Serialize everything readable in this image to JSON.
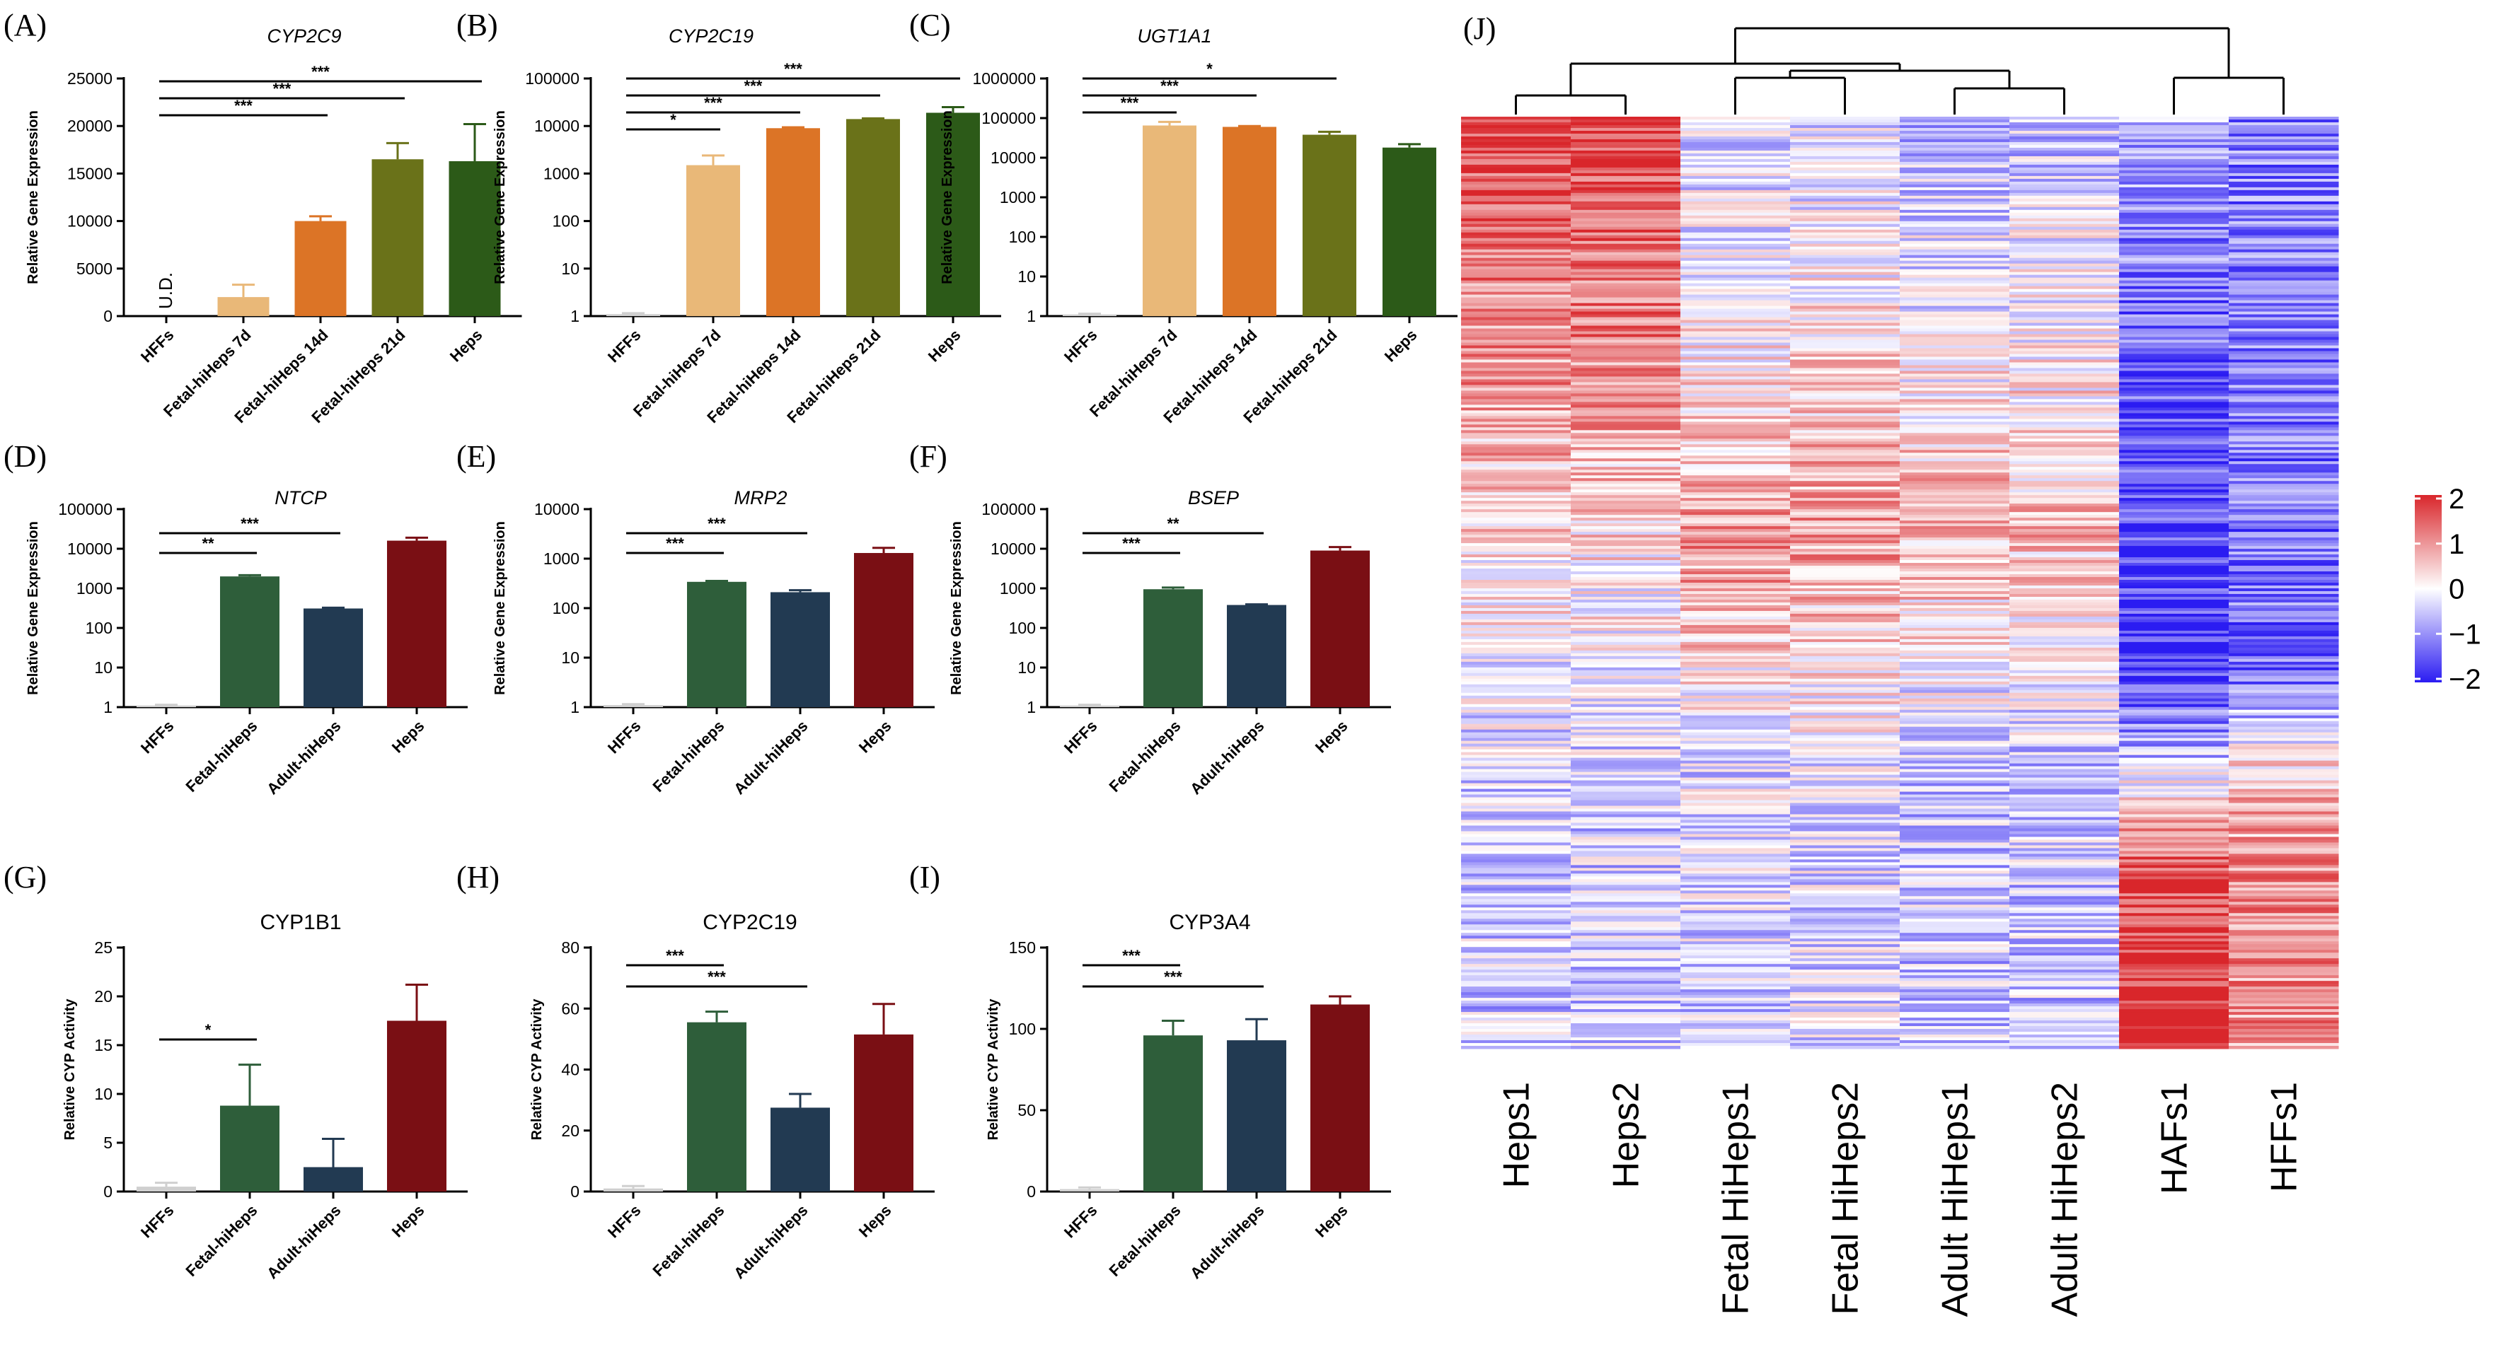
{
  "figure": {
    "colorbar": {
      "ticks": [
        "2",
        "1",
        "0",
        "−1",
        "−2"
      ],
      "low_color": "#2b1cf2",
      "mid_color": "#ffffff",
      "high_color": "#d9262b"
    }
  },
  "chart_data": [
    {
      "id": "A",
      "label": "(A)",
      "title": "CYP2C9",
      "type": "bar",
      "scale": "linear",
      "ylabel": "Relative Gene Expression",
      "ylim": [
        0,
        25000
      ],
      "ticks": [
        "0",
        "5000",
        "10000",
        "15000",
        "20000",
        "25000"
      ],
      "categories": [
        "HFFs",
        "Fetal-hiHeps 7d",
        "Fetal-hiHeps 14d",
        "Fetal-hiHeps 21d",
        "Heps"
      ],
      "values": [
        0,
        2000,
        10000,
        16500,
        16300
      ],
      "errors": [
        0,
        1300,
        500,
        1700,
        3900
      ],
      "colors": [
        "#cfcfcf",
        "#e9b878",
        "#dc7426",
        "#6a7219",
        "#2c5a18"
      ],
      "annotations": [
        "U.D."
      ],
      "sig": [
        {
          "from": 0,
          "to": 2,
          "text": "***"
        },
        {
          "from": 0,
          "to": 3,
          "text": "***"
        },
        {
          "from": 0,
          "to": 4,
          "text": "***"
        }
      ]
    },
    {
      "id": "B",
      "label": "(B)",
      "title": "CYP2C19",
      "type": "bar",
      "scale": "log",
      "ylabel": "Relative Gene Expression",
      "ylim": [
        1,
        100000
      ],
      "ticks": [
        "1",
        "10",
        "100",
        "1000",
        "10000",
        "100000"
      ],
      "categories": [
        "HFFs",
        "Fetal-hiHeps 7d",
        "Fetal-hiHeps 14d",
        "Fetal-hiHeps 21d",
        "Heps"
      ],
      "values": [
        1.1,
        1500,
        9000,
        14000,
        19000
      ],
      "errors": [
        0.05,
        900,
        400,
        500,
        6000
      ],
      "colors": [
        "#cfcfcf",
        "#e9b878",
        "#dc7426",
        "#6a7219",
        "#2c5a18"
      ],
      "sig": [
        {
          "from": 0,
          "to": 1,
          "text": "*"
        },
        {
          "from": 0,
          "to": 2,
          "text": "***"
        },
        {
          "from": 0,
          "to": 3,
          "text": "***"
        },
        {
          "from": 0,
          "to": 4,
          "text": "***"
        }
      ]
    },
    {
      "id": "C",
      "label": "(C)",
      "title": "UGT1A1",
      "type": "bar",
      "scale": "log",
      "ylabel": "Relative Gene Expression",
      "ylim": [
        1,
        1000000
      ],
      "ticks": [
        "1",
        "10",
        "100",
        "1000",
        "10000",
        "100000",
        "1000000"
      ],
      "categories": [
        "HFFs",
        "Fetal-hiHeps 7d",
        "Fetal-hiHeps 14d",
        "Fetal-hiHeps 21d",
        "Heps"
      ],
      "values": [
        1.1,
        65000,
        60000,
        38000,
        18000
      ],
      "errors": [
        0.05,
        15000,
        3000,
        7000,
        4000
      ],
      "colors": [
        "#cfcfcf",
        "#e9b878",
        "#dc7426",
        "#6a7219",
        "#2c5a18"
      ],
      "sig": [
        {
          "from": 0,
          "to": 1,
          "text": "***"
        },
        {
          "from": 0,
          "to": 2,
          "text": "***"
        },
        {
          "from": 0,
          "to": 3,
          "text": "*"
        }
      ]
    },
    {
      "id": "D",
      "label": "(D)",
      "title": "NTCP",
      "type": "bar",
      "scale": "log",
      "ylabel": "Relative Gene Expression",
      "ylim": [
        1,
        100000
      ],
      "ticks": [
        "1",
        "10",
        "100",
        "1000",
        "10000",
        "100000"
      ],
      "categories": [
        "HFFs",
        "Fetal-hiHeps",
        "Adult-hiHeps",
        "Heps"
      ],
      "values": [
        1.1,
        2000,
        310,
        16000
      ],
      "errors": [
        0.05,
        150,
        15,
        3000
      ],
      "colors": [
        "#cfcfcf",
        "#2e5e3a",
        "#223a52",
        "#7a0f14"
      ],
      "sig": [
        {
          "from": 0,
          "to": 1,
          "text": "**"
        },
        {
          "from": 0,
          "to": 2,
          "text": "***"
        }
      ]
    },
    {
      "id": "E",
      "label": "(E)",
      "title": "MRP2",
      "type": "bar",
      "scale": "log",
      "ylabel": "Relative Gene Expression",
      "ylim": [
        1,
        10000
      ],
      "ticks": [
        "1",
        "10",
        "100",
        "1000",
        "10000"
      ],
      "categories": [
        "HFFs",
        "Fetal-hiHeps",
        "Adult-hiHeps",
        "Heps"
      ],
      "values": [
        1.1,
        340,
        210,
        1300
      ],
      "errors": [
        0.05,
        15,
        20,
        350
      ],
      "colors": [
        "#cfcfcf",
        "#2e5e3a",
        "#223a52",
        "#7a0f14"
      ],
      "sig": [
        {
          "from": 0,
          "to": 1,
          "text": "***"
        },
        {
          "from": 0,
          "to": 2,
          "text": "***"
        }
      ]
    },
    {
      "id": "F",
      "label": "(F)",
      "title": "BSEP",
      "type": "bar",
      "scale": "log",
      "ylabel": "Relative Gene Expression",
      "ylim": [
        1,
        100000
      ],
      "ticks": [
        "1",
        "10",
        "100",
        "1000",
        "10000",
        "100000"
      ],
      "categories": [
        "HFFs",
        "Fetal-hiHeps",
        "Adult-hiHeps",
        "Heps"
      ],
      "values": [
        1.1,
        950,
        380,
        9000
      ],
      "errors": [
        0.05,
        100,
        15,
        2000
      ],
      "colors": [
        "#cfcfcf",
        "#2e5e3a",
        "#223a52",
        "#7a0f14"
      ],
      "sig": [
        {
          "from": 0,
          "to": 1,
          "text": "***"
        },
        {
          "from": 0,
          "to": 2,
          "text": "**"
        }
      ]
    },
    {
      "id": "G",
      "label": "(G)",
      "title": "CYP1B1",
      "type": "bar",
      "scale": "linear",
      "ylabel": "Relative CYP Activity",
      "ylim": [
        0,
        25
      ],
      "ticks": [
        "0",
        "5",
        "10",
        "15",
        "20",
        "25"
      ],
      "categories": [
        "HFFs",
        "Fetal-hiHeps",
        "Adult-hiHeps",
        "Heps"
      ],
      "values": [
        0.5,
        8.8,
        2.5,
        17.5
      ],
      "errors": [
        0.4,
        4.2,
        2.9,
        3.7
      ],
      "colors": [
        "#cfcfcf",
        "#2e5e3a",
        "#223a52",
        "#7a0f14"
      ],
      "sig": [
        {
          "from": 0,
          "to": 1,
          "text": "*"
        }
      ]
    },
    {
      "id": "H",
      "label": "(H)",
      "title": "CYP2C19",
      "type": "bar",
      "scale": "linear",
      "ylabel": "Relative CYP Activity",
      "ylim": [
        0,
        80
      ],
      "ticks": [
        "0",
        "20",
        "40",
        "60",
        "80"
      ],
      "categories": [
        "HFFs",
        "Fetal-hiHeps",
        "Adult-hiHeps",
        "Heps"
      ],
      "values": [
        1,
        55.5,
        27.5,
        51.5
      ],
      "errors": [
        0.8,
        3.5,
        4.5,
        10
      ],
      "colors": [
        "#cfcfcf",
        "#2e5e3a",
        "#223a52",
        "#7a0f14"
      ],
      "sig": [
        {
          "from": 0,
          "to": 1,
          "text": "***"
        },
        {
          "from": 0,
          "to": 2,
          "text": "***"
        }
      ]
    },
    {
      "id": "I",
      "label": "(I)",
      "title": "CYP3A4",
      "type": "bar",
      "scale": "linear",
      "ylabel": "Relative CYP Activity",
      "ylim": [
        0,
        150
      ],
      "ticks": [
        "0",
        "50",
        "100",
        "150"
      ],
      "categories": [
        "HFFs",
        "Fetal-hiHeps",
        "Adult-hiHeps",
        "Heps"
      ],
      "values": [
        1.5,
        96,
        93,
        115
      ],
      "errors": [
        1,
        9,
        13,
        5
      ],
      "colors": [
        "#cfcfcf",
        "#2e5e3a",
        "#223a52",
        "#7a0f14"
      ],
      "sig": [
        {
          "from": 0,
          "to": 1,
          "text": "***"
        },
        {
          "from": 0,
          "to": 2,
          "text": "***"
        }
      ]
    },
    {
      "id": "J",
      "label": "(J)",
      "type": "heatmap",
      "columns": [
        "Heps1",
        "Heps2",
        "Fetal HiHeps1",
        "Fetal HiHeps2",
        "Adult HiHeps1",
        "Adult HiHeps2",
        "HAFs1",
        "HFFs1"
      ],
      "color_range": [
        -2,
        2
      ],
      "column_profiles": [
        [
          [
            0,
            1.6
          ],
          [
            0.25,
            1.0
          ],
          [
            0.45,
            0.3
          ],
          [
            0.7,
            -0.4
          ],
          [
            1,
            -0.5
          ]
        ],
        [
          [
            0,
            1.8
          ],
          [
            0.25,
            1.1
          ],
          [
            0.45,
            0.3
          ],
          [
            0.7,
            -0.4
          ],
          [
            1,
            -0.5
          ]
        ],
        [
          [
            0,
            -0.4
          ],
          [
            0.25,
            0.2
          ],
          [
            0.45,
            1.0
          ],
          [
            0.7,
            -0.3
          ],
          [
            1,
            -0.4
          ]
        ],
        [
          [
            0,
            -0.3
          ],
          [
            0.25,
            0.3
          ],
          [
            0.45,
            0.9
          ],
          [
            0.7,
            -0.2
          ],
          [
            1,
            -0.4
          ]
        ],
        [
          [
            0,
            -0.7
          ],
          [
            0.25,
            0.0
          ],
          [
            0.45,
            0.7
          ],
          [
            0.7,
            -0.5
          ],
          [
            1,
            -0.5
          ]
        ],
        [
          [
            0,
            -0.5
          ],
          [
            0.25,
            0.1
          ],
          [
            0.45,
            0.6
          ],
          [
            0.7,
            -0.5
          ],
          [
            1,
            -0.5
          ]
        ],
        [
          [
            0,
            -0.6
          ],
          [
            0.2,
            -1.3
          ],
          [
            0.35,
            -1.6
          ],
          [
            0.6,
            -1.8
          ],
          [
            0.72,
            0
          ],
          [
            0.8,
            1.6
          ],
          [
            1,
            2.0
          ]
        ],
        [
          [
            0,
            -1.1
          ],
          [
            0.25,
            -1.2
          ],
          [
            0.6,
            -1.3
          ],
          [
            0.7,
            0.4
          ],
          [
            0.8,
            1.0
          ],
          [
            1,
            1.0
          ]
        ]
      ],
      "dendrogram": {
        "groups": [
          [
            "Heps1",
            "Heps2"
          ],
          [
            "Fetal HiHeps1",
            "Fetal HiHeps2",
            "Adult HiHeps1",
            "Adult HiHeps2"
          ],
          [
            "HAFs1",
            "HFFs1"
          ]
        ]
      }
    }
  ]
}
